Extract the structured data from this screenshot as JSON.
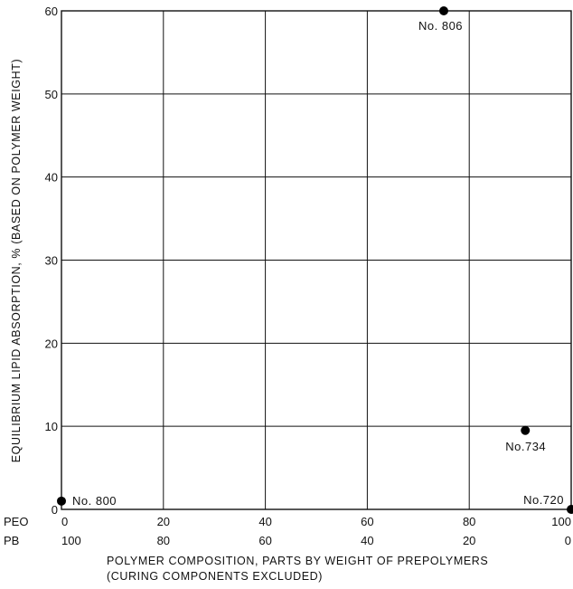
{
  "chart_data": {
    "type": "scatter",
    "title": "",
    "xlabel": "POLYMER COMPOSITION, PARTS BY WEIGHT OF PREPOLYMERS",
    "xlabel_line2": "(CURING COMPONENTS EXCLUDED)",
    "ylabel": "EQUILIBRIUM LIPID ABSORPTION, % (BASED ON POLYMER WEIGHT)",
    "xlim": [
      0,
      100
    ],
    "ylim": [
      0,
      60
    ],
    "grid": true,
    "x_axis_rows": [
      {
        "name": "PEO",
        "ticks": [
          "0",
          "20",
          "40",
          "60",
          "80",
          "100"
        ]
      },
      {
        "name": "PB",
        "ticks": [
          "100",
          "80",
          "60",
          "40",
          "20",
          "0"
        ]
      }
    ],
    "y_ticks": [
      "0",
      "10",
      "20",
      "30",
      "40",
      "50",
      "60"
    ],
    "x_tick_values": [
      0,
      20,
      40,
      60,
      80,
      100
    ],
    "y_tick_values": [
      0,
      10,
      20,
      30,
      40,
      50,
      60
    ],
    "points": [
      {
        "label": "No. 800",
        "x": 0,
        "y": 1
      },
      {
        "label": "No. 806",
        "x": 75,
        "y": 60
      },
      {
        "label": "No.734",
        "x": 91,
        "y": 9.5
      },
      {
        "label": "No.720",
        "x": 100,
        "y": 0
      }
    ]
  }
}
